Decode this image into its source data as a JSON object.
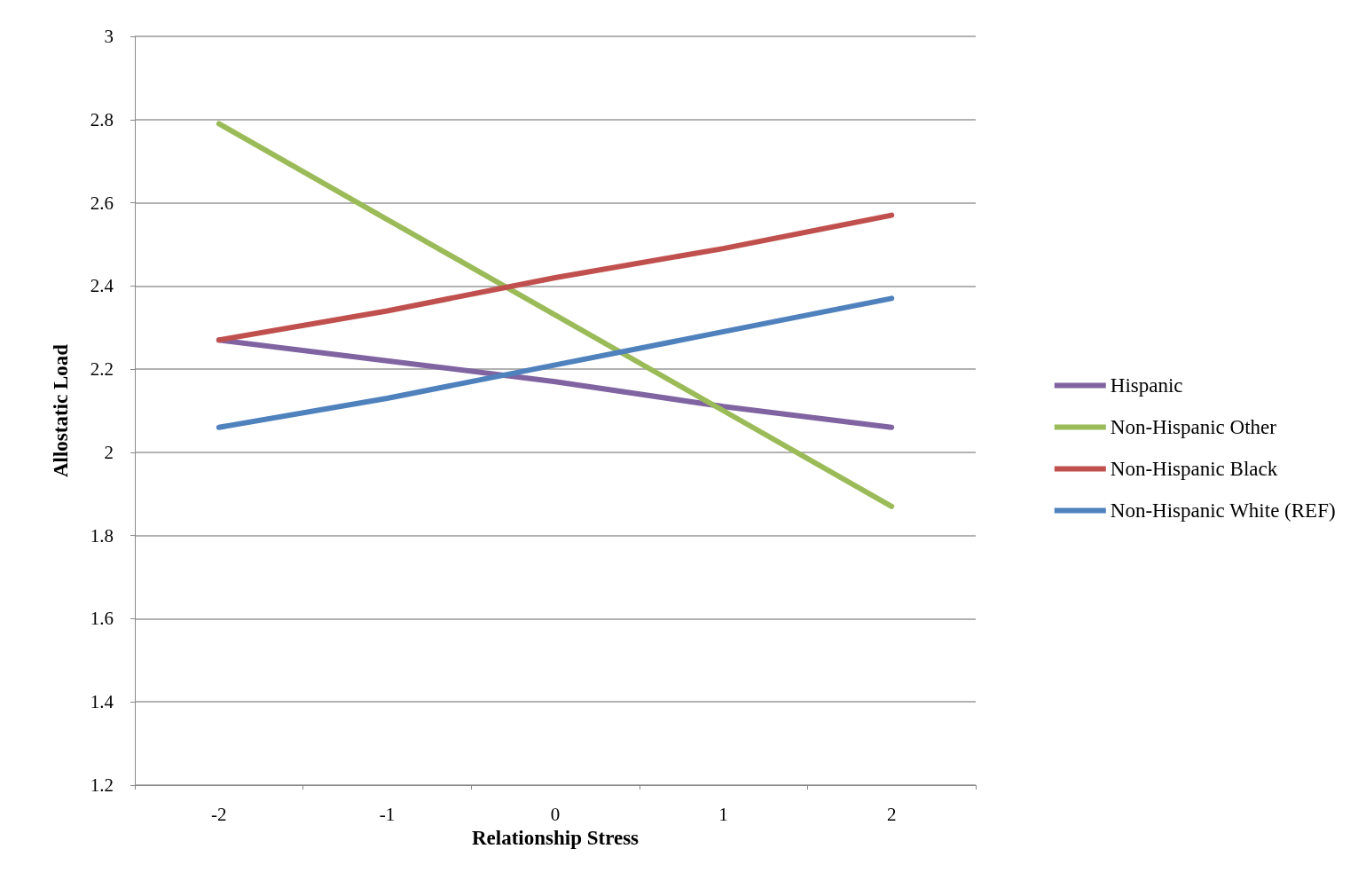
{
  "chart_data": {
    "type": "line",
    "xlabel": "Relationship Stress",
    "ylabel": "Allostatic Load",
    "categories": [
      "-2",
      "-1",
      "0",
      "1",
      "2"
    ],
    "series": [
      {
        "name": "Hispanic",
        "color": "#8064a2",
        "values": [
          2.27,
          2.22,
          2.17,
          2.11,
          2.06
        ]
      },
      {
        "name": "Non-Hispanic Other",
        "color": "#9bbb59",
        "values": [
          2.79,
          2.56,
          2.33,
          2.1,
          1.87
        ]
      },
      {
        "name": "Non-Hispanic Black",
        "color": "#c0504d",
        "values": [
          2.27,
          2.34,
          2.42,
          2.49,
          2.57
        ]
      },
      {
        "name": "Non-Hispanic White (REF)",
        "color": "#4f81bd",
        "values": [
          2.06,
          2.13,
          2.21,
          2.29,
          2.37
        ]
      }
    ],
    "ylim": [
      1.2,
      3
    ],
    "yticks": [
      1.2,
      1.4,
      1.6,
      1.8,
      2,
      2.2,
      2.4,
      2.6,
      2.8,
      3
    ],
    "grid": "y",
    "legend": "right",
    "marker": "none",
    "line_style": "solid"
  }
}
